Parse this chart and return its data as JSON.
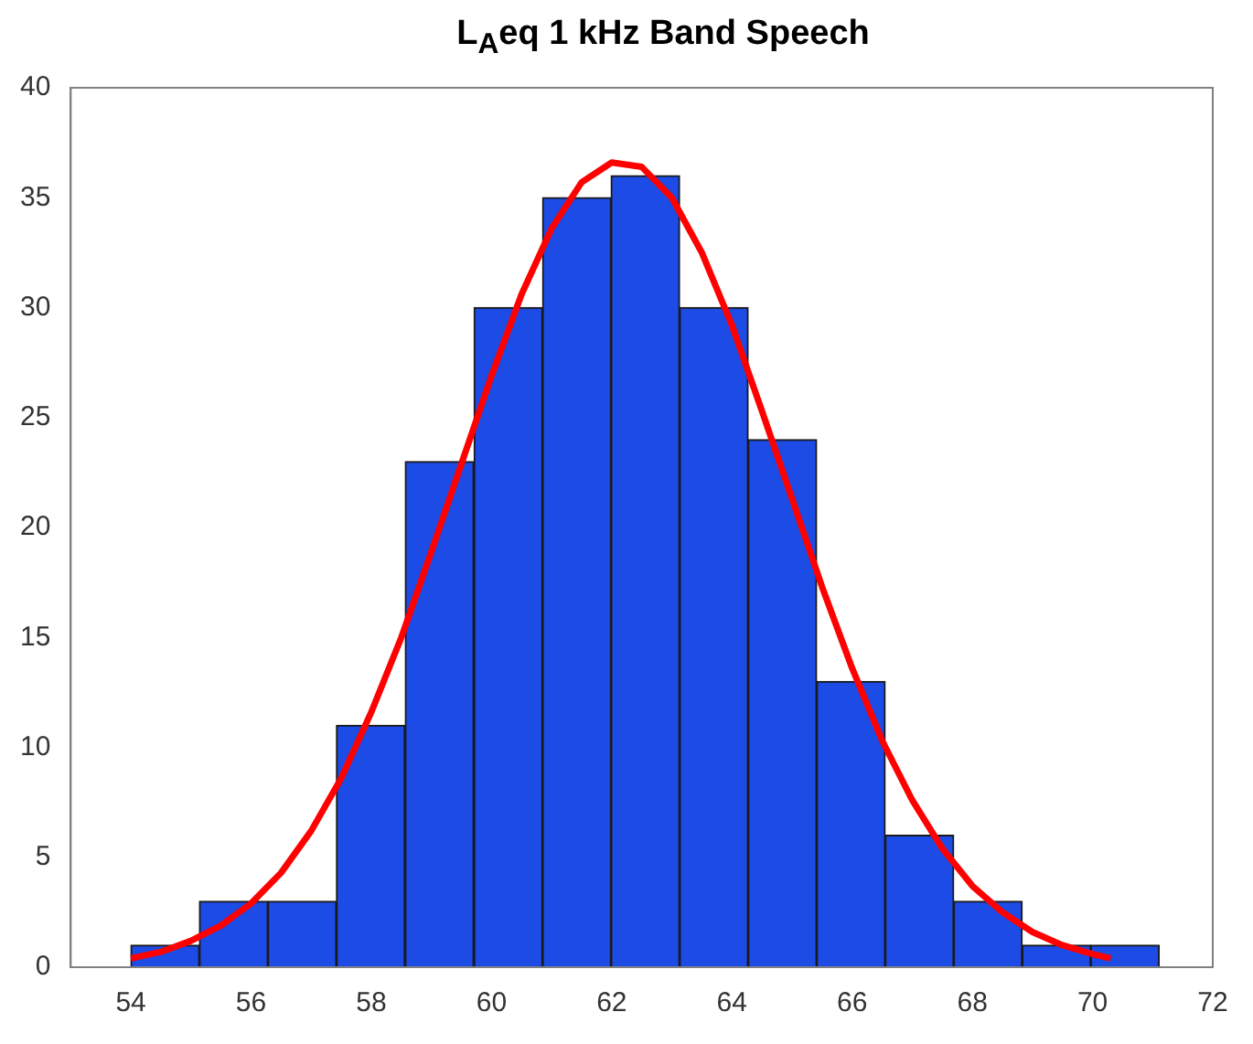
{
  "chart_data": {
    "type": "histogram",
    "title": "L$_{A}$eq 1 kHz Band Speech",
    "bins": [
      54.0,
      55.14,
      56.28,
      57.42,
      58.56,
      59.71,
      60.85,
      61.99,
      63.13,
      64.27,
      65.41,
      66.55,
      67.69,
      68.83,
      69.97,
      71.11
    ],
    "values": [
      1,
      3,
      3,
      11,
      23,
      30,
      35,
      36,
      30,
      24,
      13,
      6,
      3,
      1,
      1
    ],
    "color": "#1c4be6",
    "series": [
      {
        "type": "line",
        "color": "#ff0000",
        "x": [
          54,
          54.5,
          55,
          55.5,
          56,
          56.5,
          57,
          57.5,
          58,
          58.5,
          59,
          59.5,
          60,
          60.5,
          61,
          61.5,
          62,
          62.5,
          63,
          63.5,
          64,
          64.5,
          65,
          65.5,
          66,
          66.5,
          67,
          67.5,
          68,
          68.5,
          69,
          69.5,
          70,
          70.3
        ],
        "values": [
          0.4,
          0.7,
          1.2,
          1.9,
          2.9,
          4.3,
          6.2,
          8.6,
          11.6,
          15.0,
          18.9,
          22.9,
          26.9,
          30.6,
          33.6,
          35.7,
          36.6,
          36.4,
          35.0,
          32.5,
          29.2,
          25.3,
          21.3,
          17.3,
          13.6,
          10.3,
          7.6,
          5.4,
          3.7,
          2.5,
          1.6,
          1.0,
          0.6,
          0.4
        ]
      }
    ],
    "xlim": [
      53,
      72
    ],
    "xticks": [
      54,
      56,
      58,
      60,
      62,
      64,
      66,
      68,
      70,
      72
    ],
    "ylim": [
      0,
      40
    ],
    "yticks": [
      0,
      5,
      10,
      15,
      20,
      25,
      30,
      35,
      40
    ],
    "grid": false,
    "legend": false
  }
}
